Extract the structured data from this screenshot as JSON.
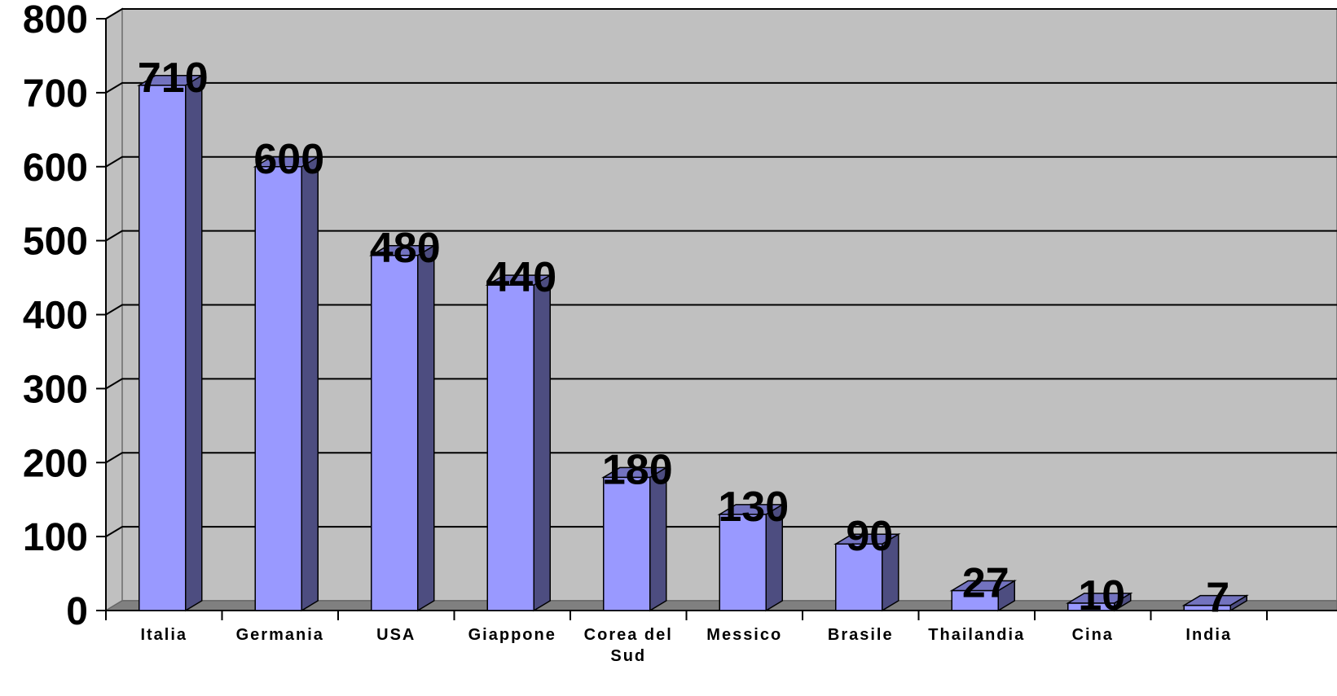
{
  "chart_data": {
    "type": "bar",
    "categories": [
      "Italia",
      "Germania",
      "USA",
      "Giappone",
      "Corea del Sud",
      "Messico",
      "Brasile",
      "Thailandia",
      "Cina",
      "India"
    ],
    "values": [
      710,
      600,
      480,
      440,
      180,
      130,
      90,
      27,
      10,
      7
    ],
    "data_labels": [
      "710",
      "600",
      "480",
      "440",
      "180",
      "130",
      "90",
      "27",
      "10",
      "7"
    ],
    "title": "",
    "xlabel": "",
    "ylabel": "",
    "ylim": [
      0,
      800
    ],
    "yticks": [
      "0",
      "100",
      "200",
      "300",
      "400",
      "500",
      "600",
      "700",
      "800"
    ],
    "grid": true,
    "legend": "none",
    "style": "3d-column",
    "colors": {
      "bar_front": "#9999ff",
      "bar_side": "#4d4d80",
      "bar_top": "#7373bf",
      "wall": "#c0c0c0",
      "floor": "#808080",
      "gridline": "#000000"
    }
  }
}
